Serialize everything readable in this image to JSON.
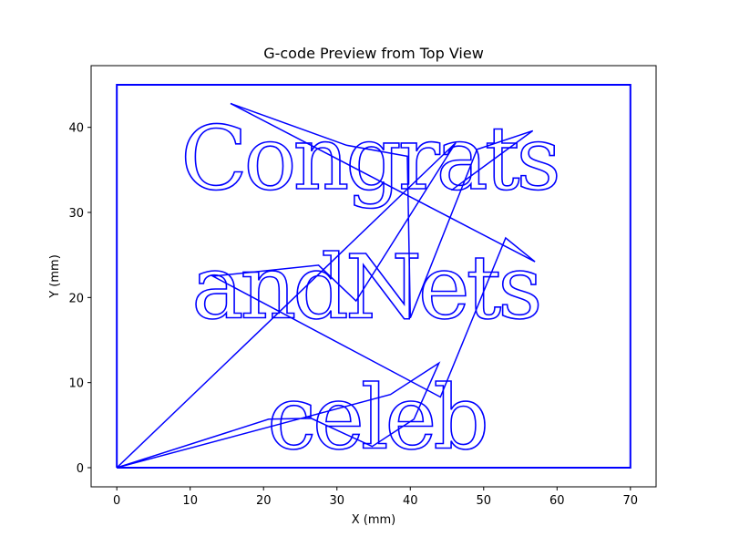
{
  "chart_data": {
    "type": "line",
    "title": "G-code Preview from Top View",
    "xlabel": "X (mm)",
    "ylabel": "Y (mm)",
    "xlim": [
      -3.5,
      73.5
    ],
    "ylim": [
      -2.25,
      47.25
    ],
    "xticks": [
      0,
      10,
      20,
      30,
      40,
      50,
      60,
      70
    ],
    "yticks": [
      0,
      10,
      20,
      30,
      40
    ],
    "grid": false,
    "legend": "none",
    "line_color": "#0000ff",
    "series": [
      {
        "kind": "border",
        "x": [
          0,
          70,
          70,
          0,
          0
        ],
        "y": [
          0,
          0,
          45,
          45,
          0
        ]
      },
      {
        "kind": "travel-moves",
        "x": [
          0,
          20.7,
          26.5,
          34.8,
          40.5,
          43.9,
          37.3,
          0,
          46.2,
          32.6,
          27.5,
          13.1,
          44.1,
          53.0,
          57.0,
          15.5
        ],
        "y": [
          0,
          5.7,
          5.8,
          2.5,
          5.7,
          12.3,
          8.6,
          0,
          38.2,
          19.6,
          23.8,
          22.5,
          8.3,
          27.0,
          24.2,
          42.8
        ]
      },
      {
        "kind": "travel-moves",
        "x": [
          15.5,
          31.3,
          39.6,
          40.0,
          49.1,
          56.7,
          45.6
        ],
        "y": [
          42.8,
          37.9,
          36.6,
          17.6,
          37.4,
          39.6,
          32.6
        ]
      }
    ],
    "text_paths": [
      {
        "text": "Congrats",
        "x": 8.7,
        "y": 32.8
      },
      {
        "text": "andNets",
        "x": 10.2,
        "y": 17.6
      },
      {
        "text": "celeb",
        "x": 20.5,
        "y": 2.3
      }
    ]
  }
}
